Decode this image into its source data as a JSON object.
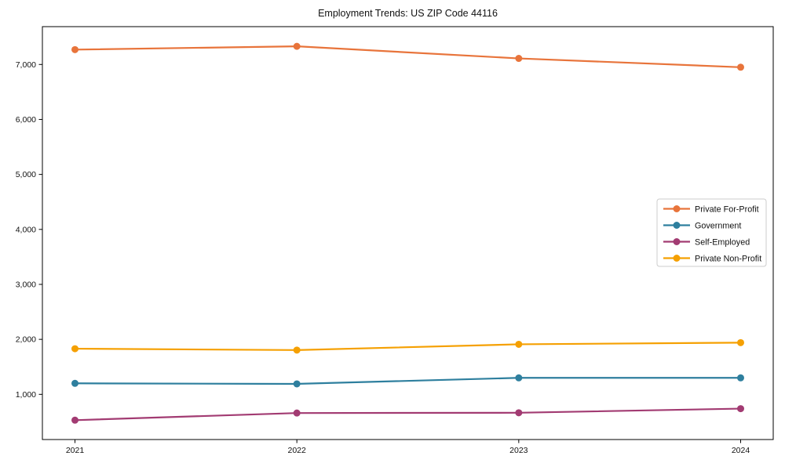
{
  "window": {
    "background": "#ffffff"
  },
  "chart_data": {
    "type": "line",
    "title": "Employment Trends: US ZIP Code 44116",
    "x": [
      "2021",
      "2022",
      "2023",
      "2024"
    ],
    "series": [
      {
        "name": "Private For-Profit",
        "color": "#E8743B",
        "values": [
          7270,
          7330,
          7110,
          6950
        ]
      },
      {
        "name": "Government",
        "color": "#2E7F9E",
        "values": [
          1200,
          1190,
          1300,
          1300
        ]
      },
      {
        "name": "Self-Employed",
        "color": "#A23B72",
        "values": [
          530,
          660,
          665,
          740
        ]
      },
      {
        "name": "Private Non-Profit",
        "color": "#F5A002",
        "values": [
          1830,
          1805,
          1910,
          1940
        ]
      }
    ],
    "xlabel": "",
    "ylabel": "",
    "ylim": [
      178,
      7688
    ],
    "yticks": [
      1000,
      2000,
      3000,
      4000,
      5000,
      6000,
      7000
    ],
    "ytick_labels": [
      "1,000",
      "2,000",
      "3,000",
      "4,000",
      "5,000",
      "6,000",
      "7,000"
    ],
    "grid": false,
    "marker": "circle",
    "line_width": 2.2,
    "axis_color": "#000000",
    "text_color": "#111111",
    "legend": {
      "position": "center-right",
      "background": "#ffffff",
      "border_color": "#cccccc"
    }
  }
}
